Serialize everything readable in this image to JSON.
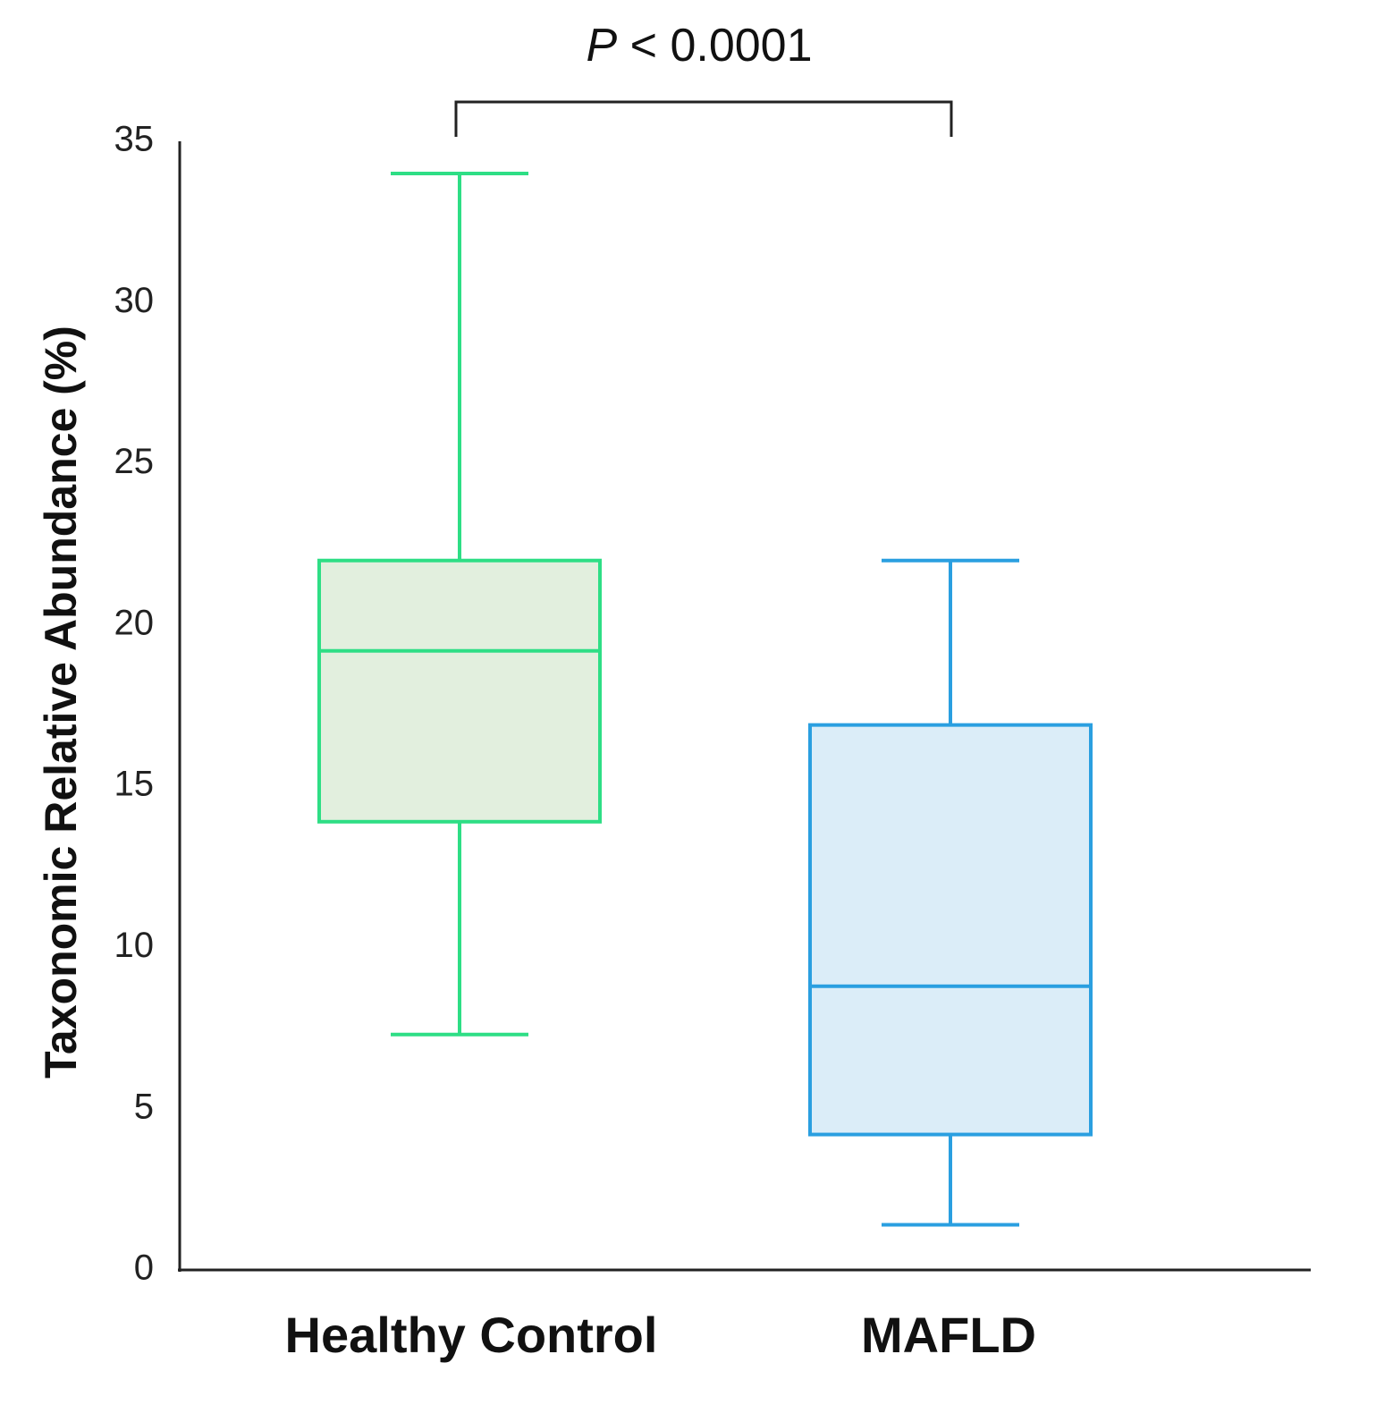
{
  "chart_data": {
    "type": "box",
    "ylabel": "Taxonomic Relative Abundance (%)",
    "xlabel": "",
    "ylim": [
      0,
      35
    ],
    "yticks": [
      0,
      5,
      10,
      15,
      20,
      25,
      30,
      35
    ],
    "categories": [
      "Healthy Control",
      "MAFLD"
    ],
    "series": [
      {
        "name": "Healthy Control",
        "whisker_low": 7.3,
        "q1": 13.9,
        "median": 19.2,
        "q3": 22.0,
        "whisker_high": 34.0,
        "stroke": "#2ede85",
        "fill": "#e2efde"
      },
      {
        "name": "MAFLD",
        "whisker_low": 1.4,
        "q1": 4.2,
        "median": 8.8,
        "q3": 16.9,
        "whisker_high": 22.0,
        "stroke": "#2a9fe0",
        "fill": "#dbedf8"
      }
    ],
    "annotation": {
      "italic_part": "P",
      "text": " < 0.0001",
      "between": [
        "Healthy Control",
        "MAFLD"
      ]
    },
    "axis_color": "#222222"
  }
}
